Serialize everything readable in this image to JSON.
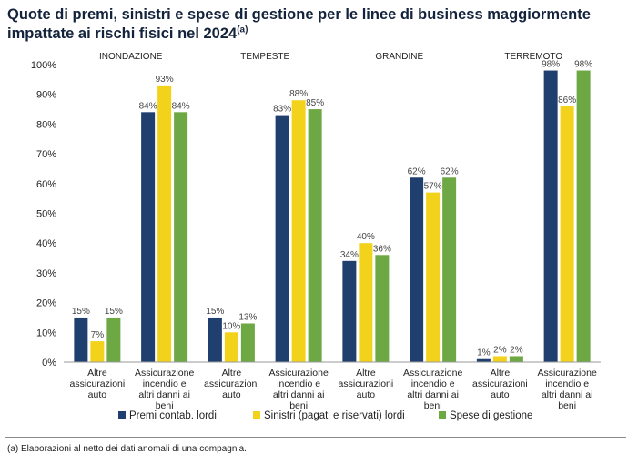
{
  "title": {
    "text": "Quote di premi, sinistri e spese di gestione per le linee di business maggiormente impattate ai rischi fisici nel 2024",
    "superscript": "(a)"
  },
  "footnote": "(a) Elaborazioni al netto dei dati anomali di una compagnia.",
  "colors": {
    "premi": "#1f3f6e",
    "sinistri": "#f2d21a",
    "spese": "#6ea845"
  },
  "chart_data": {
    "type": "bar",
    "groups": [
      "INONDAZIONE",
      "TEMPESTE",
      "GRANDINE",
      "TERREMOTO"
    ],
    "categories": [
      "Altre assicurazioni auto",
      "Assicurazione incendio e altri danni ai beni",
      "Altre assicurazioni auto",
      "Assicurazione incendio e altri danni ai beni",
      "Altre assicurazioni auto",
      "Assicurazione incendio e altri danni ai beni",
      "Altre assicurazioni auto",
      "Assicurazione incendio e altri danni ai beni"
    ],
    "series": [
      {
        "name": "Premi contab. lordi",
        "values": [
          15,
          84,
          15,
          83,
          34,
          62,
          1,
          98
        ]
      },
      {
        "name": "Sinistri (pagati e riservati) lordi",
        "values": [
          7,
          93,
          10,
          88,
          40,
          57,
          2,
          86
        ]
      },
      {
        "name": "Spese di gestione",
        "values": [
          15,
          84,
          13,
          85,
          36,
          62,
          2,
          98
        ]
      }
    ],
    "ylim": [
      0,
      100
    ],
    "yticks": [
      "0%",
      "10%",
      "20%",
      "30%",
      "40%",
      "50%",
      "60%",
      "70%",
      "80%",
      "90%",
      "100%"
    ],
    "value_suffix": "%",
    "legend": "bottom",
    "grid": false
  }
}
